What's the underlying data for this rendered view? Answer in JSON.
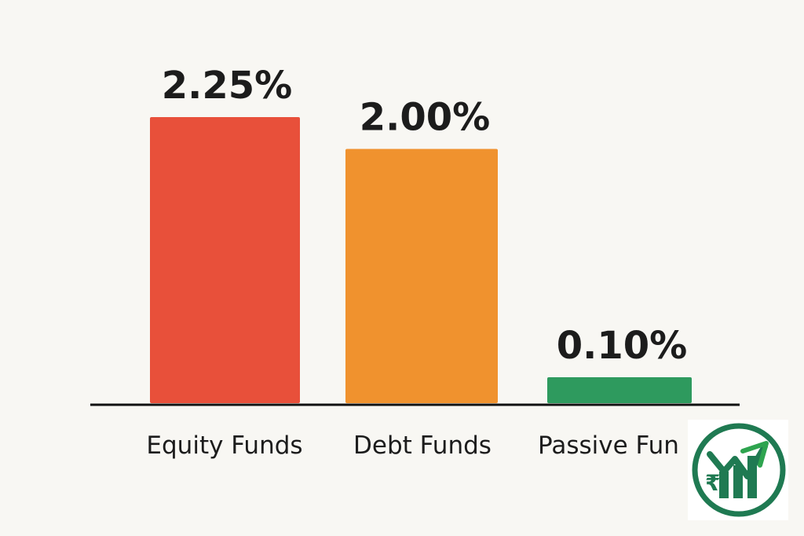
{
  "chart_data": {
    "type": "bar",
    "categories": [
      "Equity Funds",
      "Debt Funds",
      "Passive Fun"
    ],
    "values": [
      2.25,
      2.0,
      0.1
    ],
    "value_labels": [
      "2.25%",
      "2.00%",
      "0.10%"
    ],
    "ylim": [
      0,
      2.25
    ],
    "grid": false,
    "colors": [
      "#e8503a",
      "#f0922e",
      "#2e9a5e"
    ]
  },
  "logo": {
    "icon": "rupee-growth-chart-logo",
    "colors": [
      "#1f7a52",
      "#2ea44f"
    ]
  }
}
